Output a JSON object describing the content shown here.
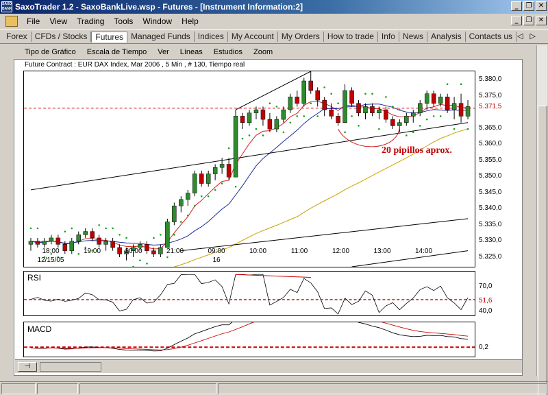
{
  "window": {
    "title": "SaxoTrader 1.2 - SaxoBankLive.wsp - Futures - [Instrument Information:2]",
    "logo_text": "SAXO BANK",
    "min": "_",
    "max": "❐",
    "close": "✕"
  },
  "menu": {
    "items": [
      "File",
      "View",
      "Trading",
      "Tools",
      "Window",
      "Help"
    ]
  },
  "tabs": {
    "items": [
      "Forex",
      "CFDs / Stocks",
      "Futures",
      "Managed Funds",
      "Indices",
      "My Account",
      "My Orders",
      "How to trade",
      "Info",
      "News",
      "Analysis",
      "Contacts us"
    ],
    "active": "Futures",
    "prev": "◁",
    "next": "▷"
  },
  "chart_menu": {
    "items": [
      "Tipo de Gráfico",
      "Escala de Tiempo",
      "Ver",
      "Líneas",
      "Estudios",
      "Zoom"
    ]
  },
  "instrument_info": "Future Contract : EUR DAX Index, Mar 2006 , 5 Min , # 130, Tiempo real",
  "annotation": "20 pipillos aprox.",
  "colors": {
    "title_bar": "#0a246a",
    "candle_up": "#2e8b2e",
    "candle_down": "#c00000",
    "ma_fast": "#d02020",
    "ma_mid": "#1a2a9c",
    "ma_slow": "#c8a000",
    "psar": "#1aa01a",
    "ref_line": "#cc0000"
  },
  "chart_data": [
    {
      "type": "candlestick",
      "name": "price",
      "y_ticks": [
        "5.380,0",
        "5.375,0",
        "5.371,5",
        "5.365,0",
        "5.360,0",
        "5.355,0",
        "5.350,0",
        "5.345,0",
        "5.340,0",
        "5.335,0",
        "5.330,0",
        "5.325,0"
      ],
      "ylim": [
        5322,
        5383
      ],
      "x_ticks": [
        {
          "label": "18:00",
          "sub": "12/15/05"
        },
        {
          "label": "19:00",
          "sub": ""
        },
        {
          "label": "20:00",
          "sub": ""
        },
        {
          "label": "21:00",
          "sub": ""
        },
        {
          "label": "09:00",
          "sub": "16"
        },
        {
          "label": "10:00",
          "sub": ""
        },
        {
          "label": "11:00",
          "sub": ""
        },
        {
          "label": "12:00",
          "sub": ""
        },
        {
          "label": "13:00",
          "sub": ""
        },
        {
          "label": "14:00",
          "sub": ""
        }
      ],
      "ref_level": 5371.5,
      "ohlc": [
        [
          5329,
          5331,
          5327,
          5330
        ],
        [
          5330,
          5331,
          5328,
          5329
        ],
        [
          5329,
          5331,
          5328,
          5330
        ],
        [
          5330,
          5332,
          5329,
          5331
        ],
        [
          5331,
          5332,
          5328,
          5329
        ],
        [
          5329,
          5330,
          5326,
          5327
        ],
        [
          5327,
          5331,
          5326,
          5330
        ],
        [
          5330,
          5333,
          5329,
          5332
        ],
        [
          5332,
          5334,
          5331,
          5333
        ],
        [
          5333,
          5334,
          5330,
          5331
        ],
        [
          5331,
          5332,
          5328,
          5329
        ],
        [
          5329,
          5331,
          5327,
          5330
        ],
        [
          5330,
          5331,
          5327,
          5328
        ],
        [
          5328,
          5329,
          5325,
          5326
        ],
        [
          5326,
          5328,
          5324,
          5327
        ],
        [
          5327,
          5329,
          5325,
          5328
        ],
        [
          5328,
          5330,
          5327,
          5329
        ],
        [
          5329,
          5330,
          5326,
          5327
        ],
        [
          5327,
          5328,
          5325,
          5326
        ],
        [
          5326,
          5329,
          5325,
          5328
        ],
        [
          5328,
          5337,
          5328,
          5336
        ],
        [
          5336,
          5342,
          5335,
          5341
        ],
        [
          5341,
          5344,
          5339,
          5343
        ],
        [
          5343,
          5346,
          5341,
          5345
        ],
        [
          5345,
          5352,
          5344,
          5351
        ],
        [
          5351,
          5352,
          5347,
          5348
        ],
        [
          5348,
          5352,
          5347,
          5351
        ],
        [
          5351,
          5354,
          5349,
          5353
        ],
        [
          5353,
          5356,
          5351,
          5354
        ],
        [
          5354,
          5356,
          5349,
          5350
        ],
        [
          5350,
          5371,
          5350,
          5369
        ],
        [
          5369,
          5370,
          5365,
          5367
        ],
        [
          5367,
          5371,
          5366,
          5370
        ],
        [
          5370,
          5372,
          5368,
          5371
        ],
        [
          5371,
          5372,
          5366,
          5368
        ],
        [
          5368,
          5370,
          5364,
          5365
        ],
        [
          5365,
          5369,
          5364,
          5368
        ],
        [
          5368,
          5372,
          5367,
          5371
        ],
        [
          5371,
          5376,
          5370,
          5375
        ],
        [
          5375,
          5377,
          5372,
          5373
        ],
        [
          5373,
          5381,
          5372,
          5380
        ],
        [
          5380,
          5383,
          5376,
          5377
        ],
        [
          5377,
          5378,
          5372,
          5374
        ],
        [
          5374,
          5375,
          5369,
          5371
        ],
        [
          5371,
          5373,
          5368,
          5369
        ],
        [
          5369,
          5370,
          5366,
          5367
        ],
        [
          5367,
          5379,
          5367,
          5377
        ],
        [
          5377,
          5378,
          5372,
          5373
        ],
        [
          5373,
          5374,
          5369,
          5370
        ],
        [
          5370,
          5373,
          5368,
          5372
        ],
        [
          5372,
          5373,
          5369,
          5370
        ],
        [
          5370,
          5372,
          5368,
          5371
        ],
        [
          5371,
          5372,
          5367,
          5368
        ],
        [
          5368,
          5369,
          5365,
          5366
        ],
        [
          5366,
          5368,
          5364,
          5367
        ],
        [
          5367,
          5370,
          5366,
          5369
        ],
        [
          5369,
          5371,
          5367,
          5370
        ],
        [
          5370,
          5374,
          5369,
          5373
        ],
        [
          5373,
          5377,
          5371,
          5376
        ],
        [
          5376,
          5377,
          5372,
          5373
        ],
        [
          5373,
          5376,
          5372,
          5375
        ],
        [
          5375,
          5376,
          5370,
          5371
        ],
        [
          5371,
          5375,
          5368,
          5373
        ],
        [
          5373,
          5376,
          5367,
          5369
        ],
        [
          5369,
          5374,
          5368,
          5372
        ]
      ],
      "trendlines": [
        {
          "from": [
            0,
            5346
          ],
          "to": [
            64,
            5367
          ]
        },
        {
          "from": [
            22,
            5327
          ],
          "to": [
            64,
            5337
          ]
        },
        {
          "from": [
            30,
            5371
          ],
          "to": [
            41,
            5383
          ]
        },
        {
          "from": [
            47,
            5322
          ],
          "to": [
            64,
            5327
          ]
        }
      ]
    },
    {
      "type": "line",
      "name": "RSI",
      "title": "RSI",
      "y_ticks": [
        "70,0",
        "51,6",
        "40,0"
      ],
      "ylim": [
        30,
        90
      ],
      "ref_level": 51.6
    },
    {
      "type": "line",
      "name": "MACD",
      "title": "MACD",
      "y_ticks": [
        "0,2"
      ],
      "ylim": [
        -2,
        6
      ],
      "ref_level": 0.2
    }
  ]
}
